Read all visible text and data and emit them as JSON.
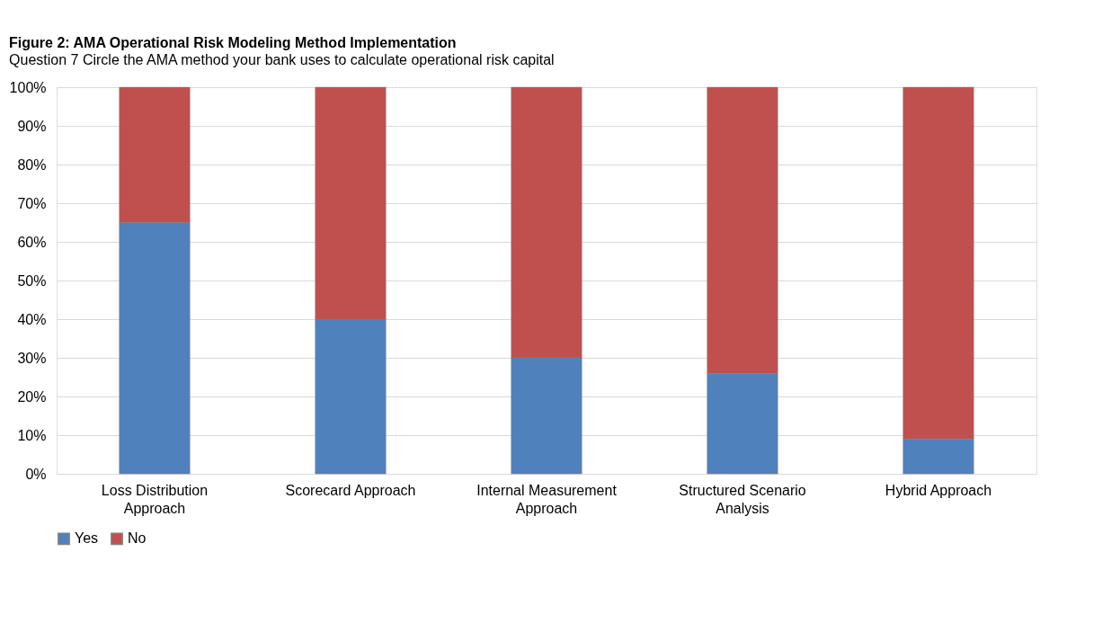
{
  "chart_data": {
    "type": "bar",
    "stacked": true,
    "title": "Figure 2: AMA Operational Risk Modeling Method Implementation",
    "subtitle": "Question 7 Circle the AMA method your bank uses to calculate operational risk capital",
    "categories": [
      "Loss Distribution Approach",
      "Scorecard Approach",
      "Internal Measurement Approach",
      "Structured Scenario Analysis",
      "Hybrid Approach"
    ],
    "series": [
      {
        "name": "Yes",
        "color": "#4f81bd",
        "values": [
          65,
          40,
          30,
          26,
          9
        ]
      },
      {
        "name": "No",
        "color": "#c0504d",
        "values": [
          35,
          60,
          70,
          74,
          91
        ]
      }
    ],
    "ylim": [
      0,
      100
    ],
    "yticks": [
      {
        "value": 0,
        "label": "0%"
      },
      {
        "value": 10,
        "label": "10%"
      },
      {
        "value": 20,
        "label": "20%"
      },
      {
        "value": 30,
        "label": "30%"
      },
      {
        "value": 40,
        "label": "40%"
      },
      {
        "value": 50,
        "label": "50%"
      },
      {
        "value": 60,
        "label": "60%"
      },
      {
        "value": 70,
        "label": "70%"
      },
      {
        "value": 80,
        "label": "80%"
      },
      {
        "value": 90,
        "label": "90%"
      },
      {
        "value": 100,
        "label": "100%"
      }
    ],
    "grid": "y",
    "legend": "bottom"
  }
}
